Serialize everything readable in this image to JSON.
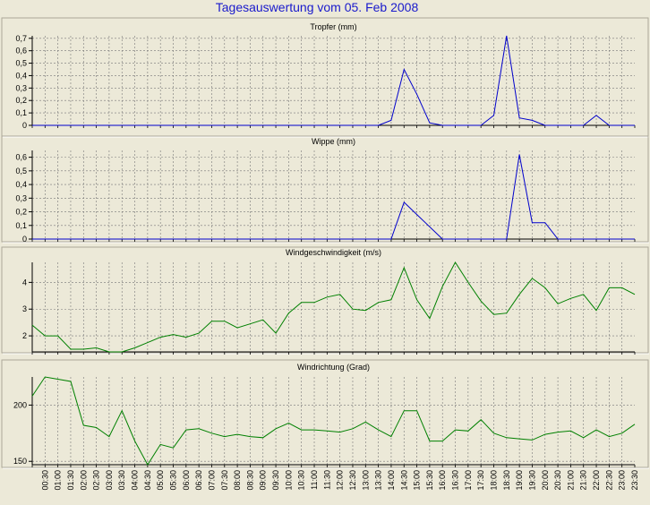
{
  "title": "Tagesauswertung vom 05. Feb 2008",
  "x_labels": [
    "00:30",
    "01:00",
    "01:30",
    "02:00",
    "02:30",
    "03:00",
    "03:30",
    "04:00",
    "04:30",
    "05:00",
    "05:30",
    "06:00",
    "06:30",
    "07:00",
    "07:30",
    "08:00",
    "08:30",
    "09:00",
    "09:30",
    "10:00",
    "10:30",
    "11:00",
    "11:30",
    "12:00",
    "12:30",
    "13:00",
    "13:30",
    "14:00",
    "14:30",
    "15:00",
    "15:30",
    "16:00",
    "16:30",
    "17:00",
    "17:30",
    "18:00",
    "18:30",
    "19:00",
    "19:30",
    "20:00",
    "20:30",
    "21:00",
    "21:30",
    "22:00",
    "22:30",
    "23:00",
    "23:30"
  ],
  "colors": {
    "rain": "#0000cc",
    "wind": "#008000",
    "grid": "#777777",
    "plot_bg": "#ece9d8"
  },
  "chart_data": [
    {
      "type": "line",
      "title": "Tropfer (mm)",
      "yticks": [
        0,
        0.1,
        0.2,
        0.3,
        0.4,
        0.5,
        0.6,
        0.7
      ],
      "ytick_labels": [
        "0",
        "0,1",
        "0,2",
        "0,3",
        "0,4",
        "0,5",
        "0,6",
        "0,7"
      ],
      "ylim": [
        0,
        0.72
      ],
      "grid": true,
      "series": [
        {
          "values": [
            0,
            0,
            0,
            0,
            0,
            0,
            0,
            0,
            0,
            0,
            0,
            0,
            0,
            0,
            0,
            0,
            0,
            0,
            0,
            0,
            0,
            0,
            0,
            0,
            0,
            0,
            0,
            0,
            0.04,
            0.45,
            0.25,
            0.02,
            0,
            0,
            0,
            0,
            0.08,
            0.72,
            0.06,
            0.04,
            0,
            0,
            0,
            0,
            0.08,
            0,
            0,
            0
          ]
        }
      ]
    },
    {
      "type": "line",
      "title": "Wippe (mm)",
      "yticks": [
        0,
        0.1,
        0.2,
        0.3,
        0.4,
        0.5,
        0.6
      ],
      "ytick_labels": [
        "0",
        "0,1",
        "0,2",
        "0,3",
        "0,4",
        "0,5",
        "0,6"
      ],
      "ylim": [
        0,
        0.65
      ],
      "grid": true,
      "series": [
        {
          "values": [
            0,
            0,
            0,
            0,
            0,
            0,
            0,
            0,
            0,
            0,
            0,
            0,
            0,
            0,
            0,
            0,
            0,
            0,
            0,
            0,
            0,
            0,
            0,
            0,
            0,
            0,
            0,
            0,
            0,
            0.27,
            0.18,
            0.09,
            0,
            0,
            0,
            0,
            0,
            0,
            0.62,
            0.12,
            0.12,
            0,
            0,
            0,
            0,
            0,
            0,
            0
          ]
        }
      ]
    },
    {
      "type": "line",
      "title": "Windgeschwindigkeit (m/s)",
      "yticks": [
        2,
        3,
        4
      ],
      "ytick_labels": [
        "2",
        "3",
        "4"
      ],
      "ylim": [
        1.4,
        4.75
      ],
      "grid": true,
      "series": [
        {
          "values": [
            2.4,
            2.0,
            2.0,
            1.5,
            1.5,
            1.55,
            1.4,
            1.4,
            1.55,
            1.75,
            1.95,
            2.05,
            1.95,
            2.1,
            2.55,
            2.55,
            2.3,
            2.45,
            2.6,
            2.1,
            2.85,
            3.25,
            3.25,
            3.45,
            3.55,
            3.0,
            2.95,
            3.25,
            3.35,
            4.55,
            3.35,
            2.65,
            3.85,
            4.75,
            4.0,
            3.3,
            2.8,
            2.85,
            3.55,
            4.15,
            3.8,
            3.2,
            3.4,
            3.55,
            2.95,
            3.8,
            3.8,
            3.55
          ]
        }
      ]
    },
    {
      "type": "line",
      "title": "Windrichtung (Grad)",
      "yticks": [
        150,
        200
      ],
      "ytick_labels": [
        "150",
        "200"
      ],
      "ylim": [
        147,
        225
      ],
      "grid": true,
      "series": [
        {
          "values": [
            208,
            225,
            223,
            221,
            182,
            180,
            172,
            195,
            168,
            147,
            165,
            162,
            178,
            179,
            175,
            172,
            174,
            172,
            171,
            179,
            184,
            178,
            178,
            177,
            176,
            179,
            185,
            178,
            172,
            195,
            195,
            168,
            168,
            178,
            177,
            187,
            175,
            171,
            170,
            169,
            174,
            176,
            177,
            171,
            178,
            172,
            175,
            183
          ]
        }
      ]
    }
  ]
}
